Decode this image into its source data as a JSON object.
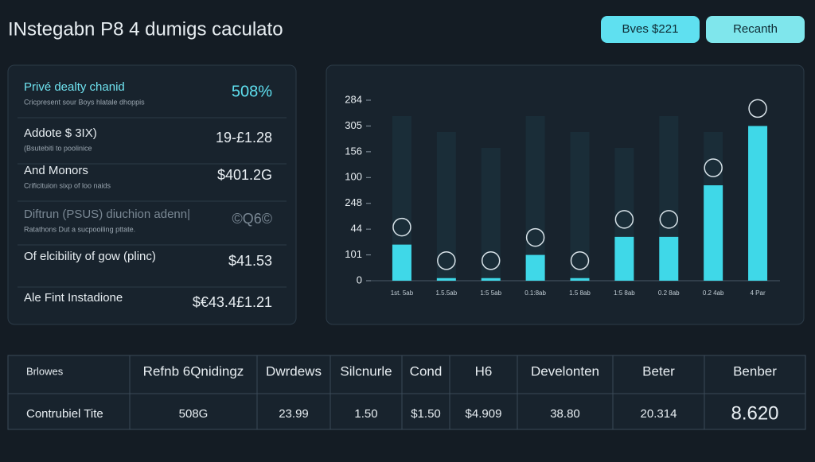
{
  "header": {
    "title": "INstegabn P8 4 dumigs caculato",
    "buttons": [
      "Bves $221",
      "Recanth"
    ]
  },
  "summary": {
    "rows": [
      {
        "label": "Privé dealty chanid",
        "sub": "Cricpresent sour Boys hlatale dhoppis",
        "value": "508%"
      },
      {
        "label": "Addote $ 3IX)",
        "sub": "(Bsutebiti to poolinice",
        "value": "19-£1.28"
      },
      {
        "label": "And Monors",
        "sub": "Crificituion sixp of loo naids",
        "value": "$401.2G"
      },
      {
        "label": "Diftrun (PSUS) diuchion adenn|",
        "sub": "Ratathons Dut a sucpooiling pttate.",
        "value": "©Q6©"
      },
      {
        "label": "Of elcibility of gow (plinc)",
        "value": "$41.53"
      },
      {
        "label": "Ale Fint Instadione",
        "value": "$€43.4£1.21"
      }
    ]
  },
  "chart_data": {
    "type": "bar",
    "color": "#3fd8e8",
    "categories": [
      "1st. 5ab",
      "1.5.5ab",
      "1:5 5ab",
      "0.1:8ab",
      "1.5 8ab",
      "1:5 8ab",
      "0.2 8ab",
      "0.2 4ab",
      "4 Par"
    ],
    "values": [
      1.4,
      0.1,
      0.1,
      1.0,
      0.1,
      1.7,
      1.7,
      3.7,
      6.0
    ],
    "ylim": [
      0,
      7
    ],
    "yticks": [
      {
        "value": 0,
        "label": "0"
      },
      {
        "value": 1,
        "label": "101"
      },
      {
        "value": 2,
        "label": "44"
      },
      {
        "value": 3,
        "label": "248"
      },
      {
        "value": 4,
        "label": "100"
      },
      {
        "value": 5,
        "label": "156"
      },
      {
        "value": 6,
        "label": "305"
      },
      {
        "value": 7,
        "label": "284"
      }
    ]
  },
  "table": {
    "header": [
      "Brlowes",
      "Refnb 6Qnidingz",
      "Dwrdews",
      "Silcnurle",
      "Cond",
      "H6",
      "Develonten",
      "Beter",
      "Benber"
    ],
    "row": [
      "Contrubiel Tite",
      "508G",
      "23.99",
      "1.50",
      "$1.50",
      "$4.909",
      "38.80",
      "20.314",
      "8.620"
    ]
  }
}
